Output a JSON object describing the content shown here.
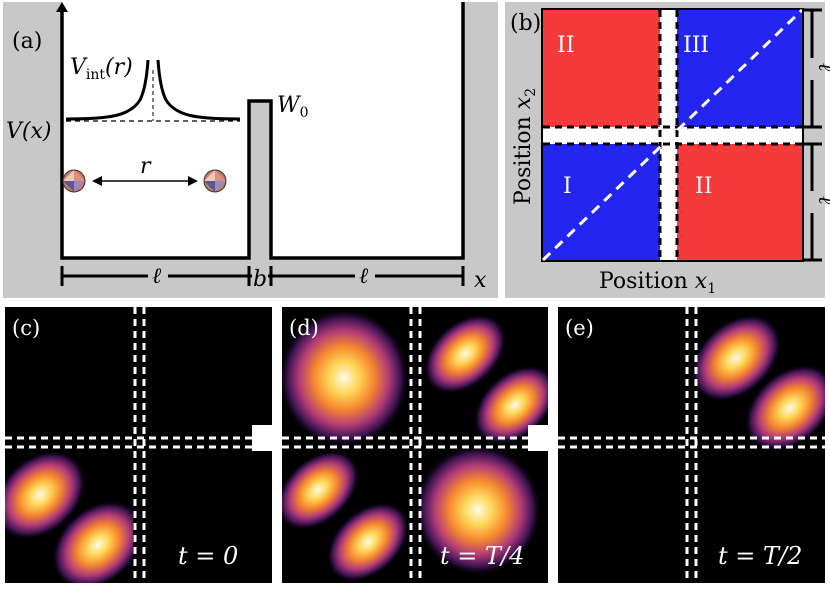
{
  "panel_a": {
    "label": "(a)",
    "v_int_label": "V",
    "v_int_sub": "int",
    "v_int_arg": "(r)",
    "v_x_label": "V(x)",
    "w0_label": "W",
    "w0_sub": "0",
    "r_label": "r",
    "ell_left": "ℓ",
    "b_label": "b",
    "ell_right": "ℓ",
    "x_label": "x"
  },
  "panel_b": {
    "label": "(b)",
    "region_top_left": "II",
    "region_top_right": "III",
    "region_bottom_left": "I",
    "region_bottom_right": "II",
    "xlabel_text": "Position ",
    "xlabel_var": "x",
    "xlabel_sub": "1",
    "ylabel_text": "Position ",
    "ylabel_var": "x",
    "ylabel_sub": "2",
    "ell_top": "ℓ",
    "ell_bottom": "ℓ",
    "colors": {
      "red": "#f43a3a",
      "blue": "#2525f2"
    }
  },
  "panel_c": {
    "label": "(c)",
    "time_text": "t = 0"
  },
  "panel_d": {
    "label": "(d)",
    "time_text": "t = T/4"
  },
  "panel_e": {
    "label": "(e)",
    "time_text": "t = T/2"
  }
}
